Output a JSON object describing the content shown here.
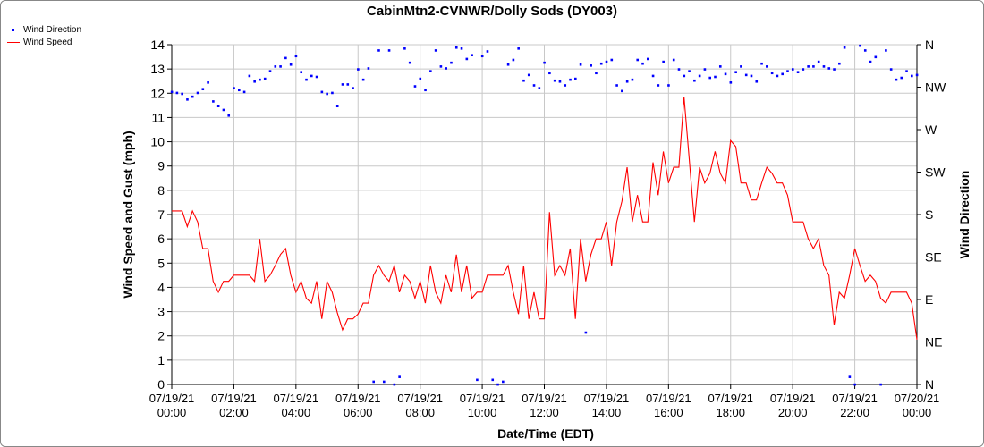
{
  "chart_data": {
    "type": "line",
    "title": "CabinMtn2-CVNWR/Dolly Sods (DY003)",
    "xlabel": "Date/Time (EDT)",
    "ylabel": "Wind Speed and Gust (mph)",
    "y2label": "Wind Direction",
    "ylim": [
      0,
      14
    ],
    "y2lim": [
      0,
      360
    ],
    "yticks": [
      "0",
      "1",
      "2",
      "3",
      "4",
      "5",
      "6",
      "7",
      "8",
      "9",
      "10",
      "11",
      "12",
      "13",
      "14"
    ],
    "y2ticks": [
      "N",
      "NE",
      "E",
      "SE",
      "S",
      "SW",
      "W",
      "NW",
      "N"
    ],
    "xrange_hours": [
      0,
      24
    ],
    "xticks": [
      {
        "date": "07/19/21",
        "time": "00:00"
      },
      {
        "date": "07/19/21",
        "time": "02:00"
      },
      {
        "date": "07/19/21",
        "time": "04:00"
      },
      {
        "date": "07/19/21",
        "time": "06:00"
      },
      {
        "date": "07/19/21",
        "time": "08:00"
      },
      {
        "date": "07/19/21",
        "time": "10:00"
      },
      {
        "date": "07/19/21",
        "time": "12:00"
      },
      {
        "date": "07/19/21",
        "time": "14:00"
      },
      {
        "date": "07/19/21",
        "time": "16:00"
      },
      {
        "date": "07/19/21",
        "time": "18:00"
      },
      {
        "date": "07/19/21",
        "time": "20:00"
      },
      {
        "date": "07/19/21",
        "time": "22:00"
      },
      {
        "date": "07/20/21",
        "time": "00:00"
      }
    ],
    "grid": true,
    "legend_placement": "top-left",
    "interval_minutes": 10,
    "series": [
      {
        "name": "Wind Direction",
        "color": "#0000ff",
        "style": "points",
        "axis": "right",
        "values": [
          310,
          309,
          308,
          302,
          305,
          309,
          313,
          320,
          300,
          295,
          291,
          285,
          314,
          312,
          310,
          327,
          321,
          323,
          324,
          332,
          337,
          337,
          346,
          339,
          348,
          331,
          323,
          327,
          326,
          310,
          308,
          309,
          295,
          318,
          318,
          314,
          334,
          323,
          335,
          3,
          354,
          3,
          354,
          0,
          8,
          356,
          341,
          316,
          324,
          312,
          332,
          354,
          337,
          335,
          341,
          357,
          356,
          345,
          349,
          5,
          348,
          353,
          5,
          0,
          3,
          339,
          344,
          356,
          322,
          328,
          317,
          314,
          341,
          330,
          322,
          321,
          317,
          323,
          324,
          339,
          55,
          338,
          330,
          340,
          342,
          344,
          317,
          311,
          321,
          323,
          344,
          340,
          345,
          327,
          317,
          342,
          317,
          344,
          334,
          327,
          332,
          322,
          327,
          334,
          325,
          326,
          337,
          329,
          320,
          331,
          337,
          328,
          327,
          321,
          340,
          337,
          330,
          327,
          329,
          332,
          334,
          331,
          334,
          337,
          337,
          342,
          337,
          335,
          334,
          340,
          357,
          8,
          0,
          359,
          354,
          342,
          347,
          0,
          354,
          334,
          323,
          325,
          332,
          327,
          328
        ]
      },
      {
        "name": "Wind Speed",
        "color": "#ff0000",
        "style": "line",
        "axis": "left",
        "values": [
          7.15,
          7.15,
          7.15,
          6.5,
          7.15,
          6.7,
          5.6,
          5.6,
          4.25,
          3.8,
          4.25,
          4.25,
          4.5,
          4.5,
          4.5,
          4.5,
          4.25,
          6.0,
          4.25,
          4.5,
          4.9,
          5.35,
          5.6,
          4.5,
          3.8,
          4.25,
          3.55,
          3.35,
          4.25,
          2.7,
          4.25,
          3.8,
          2.95,
          2.25,
          2.7,
          2.7,
          2.9,
          3.35,
          3.35,
          4.5,
          4.9,
          4.5,
          4.25,
          4.9,
          3.8,
          4.5,
          4.25,
          3.55,
          4.25,
          3.35,
          4.9,
          3.8,
          3.35,
          4.5,
          3.8,
          5.35,
          3.8,
          4.9,
          3.55,
          3.8,
          3.8,
          4.5,
          4.5,
          4.5,
          4.5,
          4.9,
          3.8,
          2.9,
          4.9,
          2.7,
          3.8,
          2.7,
          2.7,
          7.1,
          4.5,
          4.9,
          4.5,
          5.6,
          2.7,
          6.0,
          4.25,
          5.35,
          6.0,
          6.0,
          6.7,
          4.9,
          6.7,
          7.55,
          8.95,
          6.7,
          7.8,
          6.7,
          6.7,
          9.15,
          7.8,
          9.6,
          8.3,
          8.95,
          8.95,
          11.85,
          9.3,
          6.7,
          8.95,
          8.3,
          8.7,
          9.6,
          8.7,
          8.3,
          10.05,
          9.8,
          8.3,
          8.3,
          7.6,
          7.6,
          8.3,
          8.95,
          8.7,
          8.3,
          8.3,
          7.8,
          6.7,
          6.7,
          6.7,
          6.0,
          5.6,
          6.0,
          4.9,
          4.5,
          2.45,
          3.8,
          3.55,
          4.5,
          5.6,
          4.9,
          4.25,
          4.5,
          4.25,
          3.55,
          3.35,
          3.8,
          3.8,
          3.8,
          3.8,
          3.35,
          1.85
        ]
      }
    ]
  }
}
